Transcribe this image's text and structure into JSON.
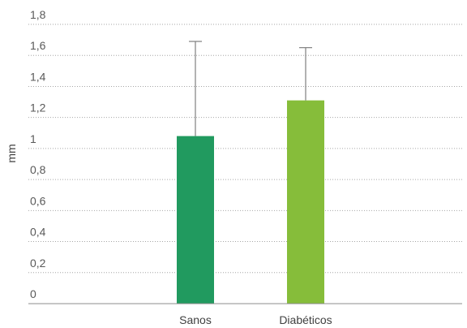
{
  "chart_data": {
    "type": "bar",
    "categories": [
      "Sanos",
      "Diabéticos"
    ],
    "values": [
      1.08,
      1.31
    ],
    "error_upper": [
      1.69,
      1.65
    ],
    "colors": [
      "#219a5f",
      "#86bd3a"
    ],
    "ylabel": "mm",
    "ylim": [
      0,
      1.8
    ],
    "yticks": [
      0,
      0.2,
      0.4,
      0.6,
      0.8,
      1,
      1.2,
      1.4,
      1.6,
      1.8
    ],
    "ytick_labels": [
      "0",
      "0,2",
      "0,4",
      "0,6",
      "0,8",
      "1",
      "1,2",
      "1,4",
      "1,6",
      "1,8"
    ],
    "grid": true
  }
}
